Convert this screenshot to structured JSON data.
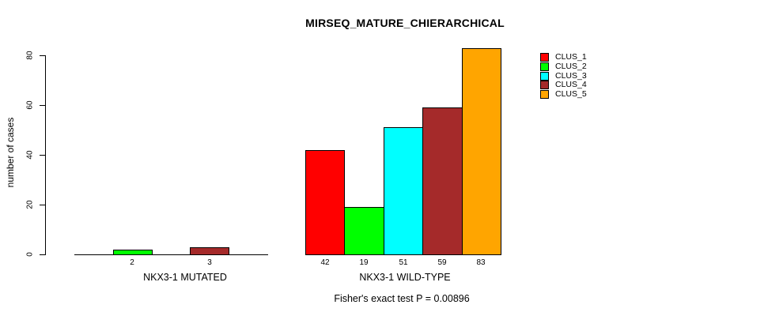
{
  "figure": {
    "background": "#ffffff",
    "foreground": "#000000"
  },
  "chart_data": {
    "type": "bar",
    "title": "MIRSEQ_MATURE_CHIERARCHICAL",
    "xlabel": "",
    "ylabel": "number of cases",
    "ylim": [
      0,
      80
    ],
    "yticks": [
      0,
      20,
      40,
      60,
      80
    ],
    "grid": false,
    "legend_position": "top-right",
    "series_labels": [
      "CLUS_1",
      "CLUS_2",
      "CLUS_3",
      "CLUS_4",
      "CLUS_5"
    ],
    "series_colors": [
      "#FF0000",
      "#00FF00",
      "#00FFFF",
      "#A52A2A",
      "#FFA500"
    ],
    "groups": [
      {
        "label": "NKX3-1 MUTATED",
        "values": [
          0,
          2,
          0,
          3,
          0
        ]
      },
      {
        "label": "NKX3-1 WILD-TYPE",
        "values": [
          42,
          19,
          51,
          59,
          83
        ]
      }
    ],
    "bar_value_labels_note": "value shown under each bar with height > 0",
    "annotation": "Fisher's exact test P = 0.00896"
  }
}
